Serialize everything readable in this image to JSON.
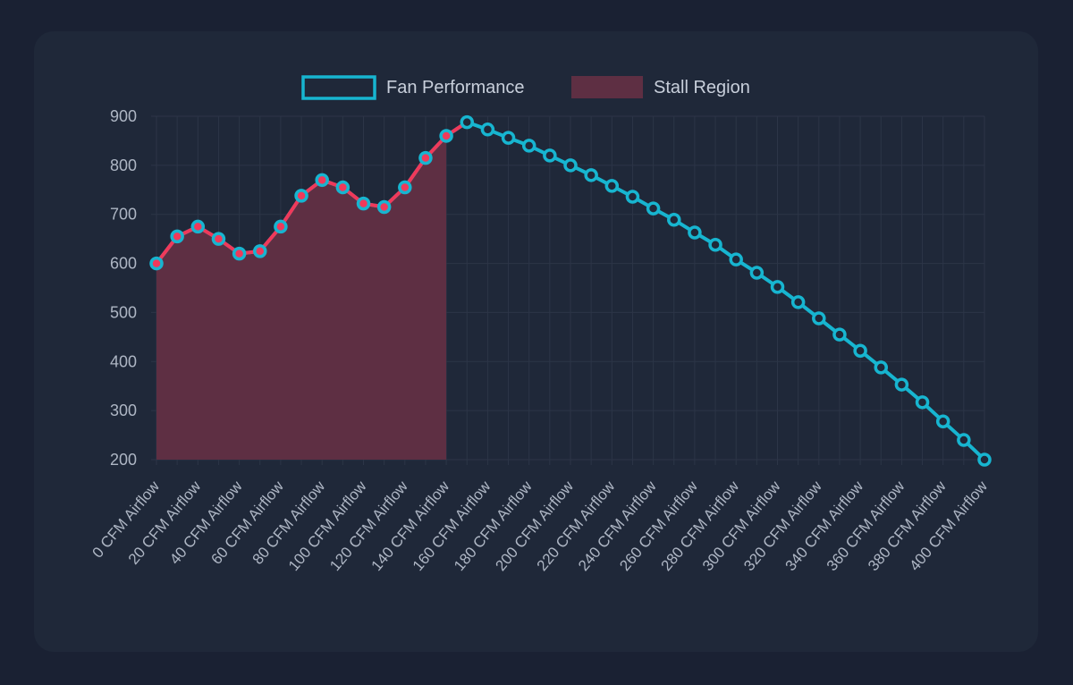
{
  "chart_data": {
    "type": "line",
    "title": "",
    "xlabel": "",
    "ylabel": "",
    "ylim": [
      200,
      900
    ],
    "yticks": [
      200,
      300,
      400,
      500,
      600,
      700,
      800,
      900
    ],
    "grid": true,
    "legend_position": "top",
    "x": [
      0,
      10,
      20,
      30,
      40,
      50,
      60,
      70,
      80,
      90,
      100,
      110,
      120,
      130,
      140,
      150,
      160,
      170,
      180,
      190,
      200,
      210,
      220,
      230,
      240,
      250,
      260,
      270,
      280,
      290,
      300,
      310,
      320,
      330,
      340,
      350,
      360,
      370,
      380,
      390,
      400
    ],
    "x_label_suffix": " CFM Airflow",
    "series": [
      {
        "name": "Fan Performance",
        "color": "#17b5d0",
        "values": [
          600,
          655,
          675,
          650,
          620,
          625,
          675,
          738,
          770,
          755,
          722,
          715,
          755,
          815,
          860,
          888,
          873,
          856,
          840,
          820,
          800,
          780,
          758,
          736,
          712,
          689,
          663,
          638,
          608,
          581,
          552,
          521,
          488,
          455,
          422,
          388,
          353,
          317,
          278,
          240,
          200
        ]
      },
      {
        "name": "Stall Region",
        "color": "#f0395a",
        "fill": "#5e2f43",
        "values": [
          600,
          655,
          675,
          650,
          620,
          625,
          675,
          738,
          770,
          755,
          722,
          715,
          755,
          815,
          860,
          null,
          null,
          null,
          null,
          null,
          null,
          null,
          null,
          null,
          null,
          null,
          null,
          null,
          null,
          null,
          null,
          null,
          null,
          null,
          null,
          null,
          null,
          null,
          null,
          null,
          null
        ]
      }
    ]
  }
}
